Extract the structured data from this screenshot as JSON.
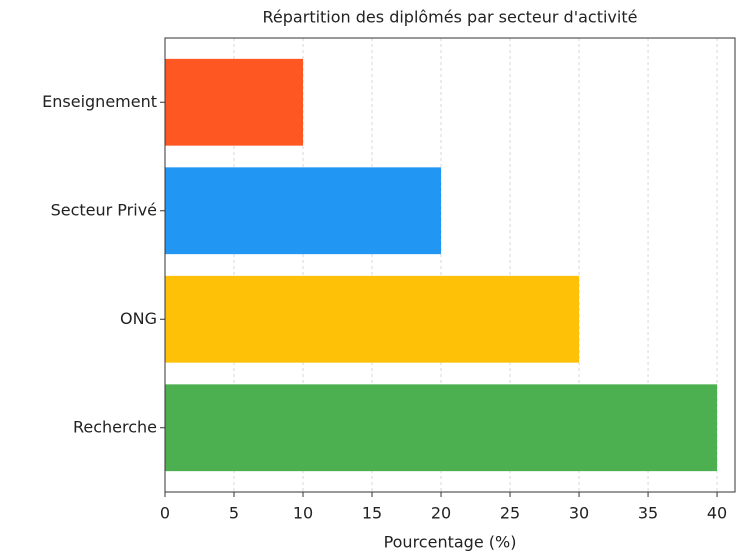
{
  "chart_data": {
    "type": "bar",
    "orientation": "horizontal",
    "title": "Répartition des diplômés par secteur d'activité",
    "xlabel": "Pourcentage (%)",
    "categories": [
      "Enseignement",
      "Secteur Privé",
      "ONG",
      "Recherche"
    ],
    "values": [
      10,
      20,
      30,
      40
    ],
    "colors": [
      "#ff5722",
      "#2196f3",
      "#ffc107",
      "#4caf50"
    ],
    "xlim": [
      0,
      41.3
    ],
    "xticks": [
      0,
      5,
      10,
      15,
      20,
      25,
      30,
      35,
      40
    ],
    "grid": true
  }
}
